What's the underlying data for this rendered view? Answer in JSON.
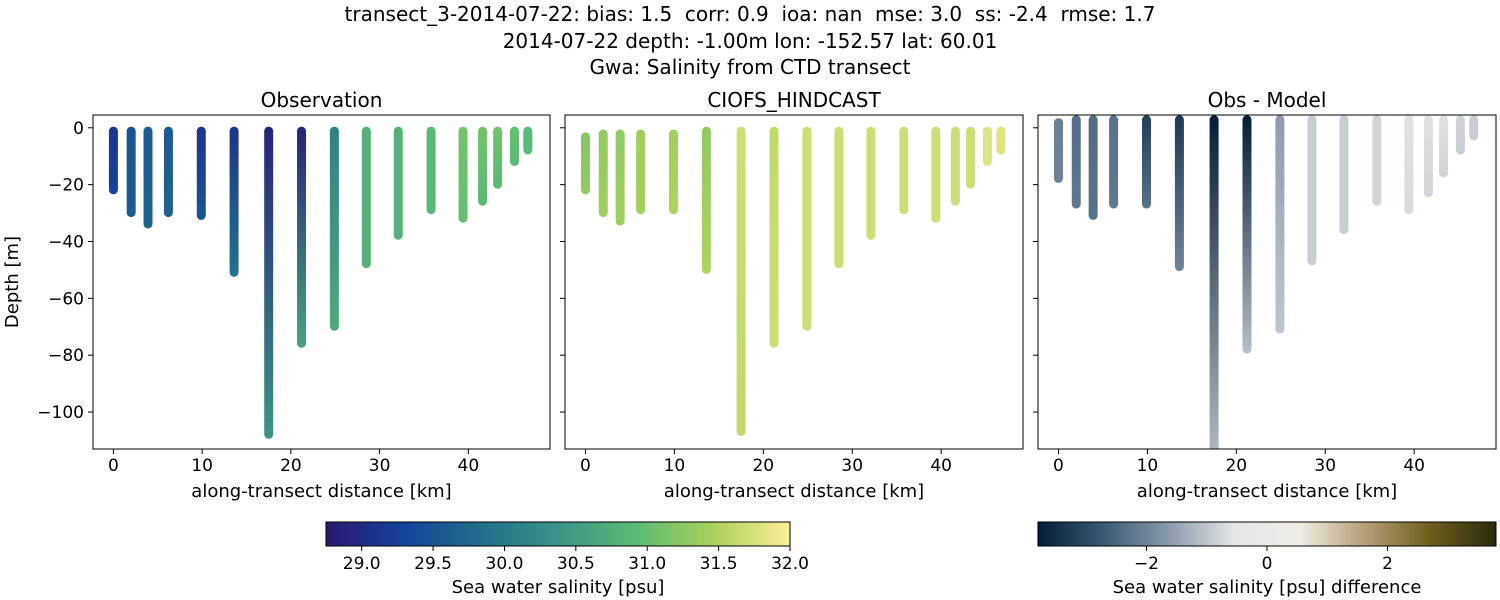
{
  "figure": {
    "title_lines": [
      "transect_3-2014-07-22: bias: 1.5  corr: 0.9  ioa: nan  mse: 3.0  ss: -2.4  rmse: 1.7",
      "2014-07-22 depth: -1.00m lon: -152.57 lat: 60.01",
      "Gwa: Salinity from CTD transect"
    ]
  },
  "chart_data": [
    {
      "type": "scatter",
      "title": "Observation",
      "xlabel": "along-transect distance [km]",
      "ylabel": "Depth [m]",
      "xlim": [
        -2.3,
        49.2
      ],
      "ylim": [
        -113,
        4.5
      ],
      "xticks": [
        0,
        10,
        20,
        30,
        40
      ],
      "yticks": [
        0,
        -20,
        -40,
        -60,
        -80,
        -100
      ],
      "grid": false,
      "colormap": "haline",
      "profiles": [
        {
          "x": 0.0,
          "top": -1,
          "bottom": -22,
          "vtop": 29.1,
          "vbot": 29.3
        },
        {
          "x": 2.0,
          "top": -1,
          "bottom": -30,
          "vtop": 29.5,
          "vbot": 29.6
        },
        {
          "x": 3.9,
          "top": -1,
          "bottom": -34,
          "vtop": 29.6,
          "vbot": 29.7
        },
        {
          "x": 6.2,
          "top": -1,
          "bottom": -30,
          "vtop": 29.6,
          "vbot": 29.7
        },
        {
          "x": 9.9,
          "top": -1,
          "bottom": -31,
          "vtop": 29.1,
          "vbot": 29.5
        },
        {
          "x": 13.6,
          "top": -1,
          "bottom": -51,
          "vtop": 29.1,
          "vbot": 29.9
        },
        {
          "x": 17.5,
          "top": -1,
          "bottom": -108,
          "vtop": 28.9,
          "vbot": 30.4
        },
        {
          "x": 21.2,
          "top": -1,
          "bottom": -76,
          "vtop": 28.9,
          "vbot": 30.6
        },
        {
          "x": 24.9,
          "top": -1,
          "bottom": -70,
          "vtop": 30.1,
          "vbot": 30.7
        },
        {
          "x": 28.5,
          "top": -1,
          "bottom": -48,
          "vtop": 30.8,
          "vbot": 30.8
        },
        {
          "x": 32.1,
          "top": -1,
          "bottom": -38,
          "vtop": 30.8,
          "vbot": 30.8
        },
        {
          "x": 35.8,
          "top": -1,
          "bottom": -29,
          "vtop": 30.9,
          "vbot": 30.9
        },
        {
          "x": 39.4,
          "top": -1,
          "bottom": -32,
          "vtop": 31.1,
          "vbot": 31.0
        },
        {
          "x": 41.6,
          "top": -1,
          "bottom": -26,
          "vtop": 31.1,
          "vbot": 30.9
        },
        {
          "x": 43.3,
          "top": -1,
          "bottom": -20,
          "vtop": 31.1,
          "vbot": 30.9
        },
        {
          "x": 45.2,
          "top": -1,
          "bottom": -12,
          "vtop": 31.0,
          "vbot": 30.9
        },
        {
          "x": 46.7,
          "top": -1,
          "bottom": -8,
          "vtop": 30.9,
          "vbot": 30.9
        }
      ]
    },
    {
      "type": "scatter",
      "title": "CIOFS_HINDCAST",
      "xlabel": "along-transect distance [km]",
      "ylabel": "",
      "xlim": [
        -2.3,
        49.2
      ],
      "ylim": [
        -113,
        4.5
      ],
      "xticks": [
        0,
        10,
        20,
        30,
        40
      ],
      "yticks": [
        0,
        -20,
        -40,
        -60,
        -80,
        -100
      ],
      "grid": false,
      "colormap": "haline",
      "profiles": [
        {
          "x": 0.0,
          "top": -3,
          "bottom": -22,
          "vtop": 31.2,
          "vbot": 31.3
        },
        {
          "x": 2.0,
          "top": -2,
          "bottom": -30,
          "vtop": 31.3,
          "vbot": 31.4
        },
        {
          "x": 3.9,
          "top": -2,
          "bottom": -33,
          "vtop": 31.3,
          "vbot": 31.4
        },
        {
          "x": 6.2,
          "top": -2,
          "bottom": -29,
          "vtop": 31.4,
          "vbot": 31.4
        },
        {
          "x": 9.9,
          "top": -2,
          "bottom": -29,
          "vtop": 31.4,
          "vbot": 31.5
        },
        {
          "x": 13.6,
          "top": -1,
          "bottom": -50,
          "vtop": 31.3,
          "vbot": 31.5
        },
        {
          "x": 17.5,
          "top": -1,
          "bottom": -107,
          "vtop": 31.7,
          "vbot": 31.6
        },
        {
          "x": 21.2,
          "top": -1,
          "bottom": -76,
          "vtop": 31.6,
          "vbot": 31.7
        },
        {
          "x": 24.9,
          "top": -1,
          "bottom": -70,
          "vtop": 31.7,
          "vbot": 31.7
        },
        {
          "x": 28.5,
          "top": -1,
          "bottom": -48,
          "vtop": 31.7,
          "vbot": 31.7
        },
        {
          "x": 32.1,
          "top": -1,
          "bottom": -38,
          "vtop": 31.7,
          "vbot": 31.7
        },
        {
          "x": 35.8,
          "top": -1,
          "bottom": -29,
          "vtop": 31.7,
          "vbot": 31.7
        },
        {
          "x": 39.4,
          "top": -1,
          "bottom": -32,
          "vtop": 31.7,
          "vbot": 31.7
        },
        {
          "x": 41.6,
          "top": -1,
          "bottom": -26,
          "vtop": 31.7,
          "vbot": 31.7
        },
        {
          "x": 43.3,
          "top": -1,
          "bottom": -20,
          "vtop": 31.7,
          "vbot": 31.7
        },
        {
          "x": 45.2,
          "top": -1,
          "bottom": -12,
          "vtop": 31.8,
          "vbot": 31.8
        },
        {
          "x": 46.7,
          "top": -1,
          "bottom": -8,
          "vtop": 31.8,
          "vbot": 31.8
        }
      ]
    },
    {
      "type": "scatter",
      "title": "Obs - Model",
      "xlabel": "along-transect distance [km]",
      "ylabel": "",
      "xlim": [
        -2.3,
        49.2
      ],
      "ylim": [
        -113,
        4.5
      ],
      "xticks": [
        0,
        10,
        20,
        30,
        40
      ],
      "yticks": [
        0,
        -20,
        -40,
        -60,
        -80,
        -100
      ],
      "grid": false,
      "colormap": "diff",
      "profiles": [
        {
          "x": 0.0,
          "top": 2,
          "bottom": -18,
          "vtop": -2.1,
          "vbot": -2.0
        },
        {
          "x": 2.0,
          "top": 3,
          "bottom": -27,
          "vtop": -2.4,
          "vbot": -2.2
        },
        {
          "x": 3.9,
          "top": 3,
          "bottom": -31,
          "vtop": -2.4,
          "vbot": -2.3
        },
        {
          "x": 6.2,
          "top": 3,
          "bottom": -27,
          "vtop": -2.3,
          "vbot": -2.2
        },
        {
          "x": 9.9,
          "top": 3,
          "bottom": -27,
          "vtop": -3.2,
          "vbot": -2.3
        },
        {
          "x": 13.6,
          "top": 3,
          "bottom": -49,
          "vtop": -3.3,
          "vbot": -2.0
        },
        {
          "x": 17.5,
          "top": 3,
          "bottom": -113,
          "vtop": -3.8,
          "vbot": -1.2
        },
        {
          "x": 21.2,
          "top": 3,
          "bottom": -78,
          "vtop": -3.8,
          "vbot": -1.1
        },
        {
          "x": 24.9,
          "top": 3,
          "bottom": -71,
          "vtop": -1.6,
          "vbot": -1.0
        },
        {
          "x": 28.5,
          "top": 3,
          "bottom": -47,
          "vtop": -0.9,
          "vbot": -0.9
        },
        {
          "x": 32.1,
          "top": 3,
          "bottom": -36,
          "vtop": -0.9,
          "vbot": -0.9
        },
        {
          "x": 35.8,
          "top": 3,
          "bottom": -26,
          "vtop": -0.8,
          "vbot": -0.8
        },
        {
          "x": 39.4,
          "top": 3,
          "bottom": -29,
          "vtop": -0.6,
          "vbot": -0.7
        },
        {
          "x": 41.6,
          "top": 3,
          "bottom": -23,
          "vtop": -0.6,
          "vbot": -0.8
        },
        {
          "x": 43.3,
          "top": 3,
          "bottom": -16,
          "vtop": -0.6,
          "vbot": -0.8
        },
        {
          "x": 45.2,
          "top": 3,
          "bottom": -8,
          "vtop": -0.8,
          "vbot": -0.9
        },
        {
          "x": 46.7,
          "top": 3,
          "bottom": -3,
          "vtop": -0.9,
          "vbot": -0.9
        }
      ]
    }
  ],
  "colorbars": [
    {
      "label": "Sea water salinity [psu]",
      "range": [
        28.75,
        32.0
      ],
      "ticks": [
        "29.0",
        "29.5",
        "30.0",
        "30.5",
        "31.0",
        "31.5",
        "32.0"
      ],
      "colormap": "haline"
    },
    {
      "label": "Sea water salinity [psu] difference",
      "range": [
        -3.8,
        3.8
      ],
      "ticks": [
        "−2",
        "0",
        "2"
      ],
      "colormap": "diff"
    }
  ],
  "colormaps": {
    "haline": [
      "#2a186c",
      "#14439c",
      "#206e8b",
      "#3c9387",
      "#5aba75",
      "#a9d15a",
      "#fdef9a"
    ],
    "diff": [
      "#021d37",
      "#3b5a75",
      "#8a9aab",
      "#e4e6e8",
      "#f0ede6",
      "#b59e75",
      "#6d5e1d",
      "#2a2a0d"
    ]
  }
}
